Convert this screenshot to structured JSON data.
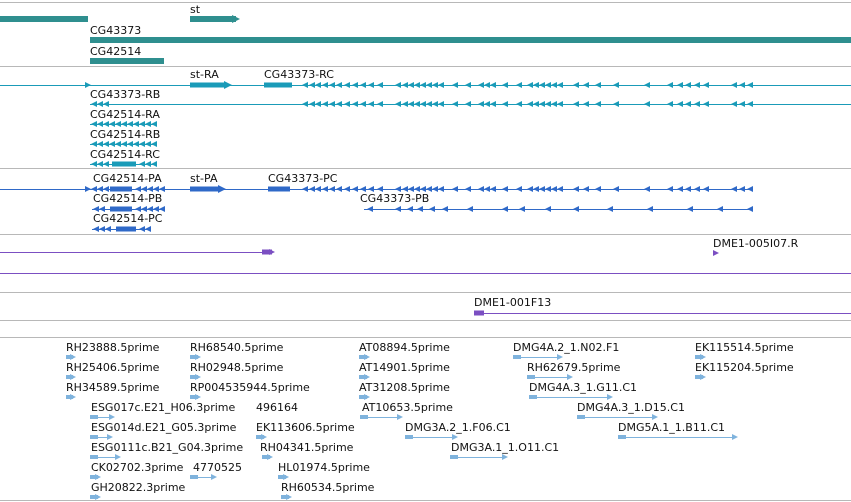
{
  "colors": {
    "gene": "#2f8f8f",
    "mrna": "#1a9bb8",
    "protein": "#2f69c8",
    "clone": "#7b4fc2",
    "est": "#7fb3dd",
    "separator": "#b8b8b8"
  },
  "genes": {
    "st": "st",
    "cg43373": "CG43373",
    "cg42514": "CG42514"
  },
  "mrnas": {
    "st_ra": "st-RA",
    "cg43373_rc": "CG43373-RC",
    "cg43373_rb": "CG43373-RB",
    "cg42514_ra": "CG42514-RA",
    "cg42514_rb": "CG42514-RB",
    "cg42514_rc": "CG42514-RC"
  },
  "proteins": {
    "cg42514_pa": "CG42514-PA",
    "st_pa": "st-PA",
    "cg43373_pc": "CG43373-PC",
    "cg42514_pb": "CG42514-PB",
    "cg43373_pb": "CG43373-PB",
    "cg42514_pc": "CG42514-PC"
  },
  "clones": {
    "dme1_005i07": "DME1-005I07.R",
    "dme1_001f13": "DME1-001F13"
  },
  "ests": {
    "rh23888": "RH23888.5prime",
    "rh25406": "RH25406.5prime",
    "rh34589": "RH34589.5prime",
    "esg017c": "ESG017c.E21_H06.3prime",
    "esg014d": "ESG014d.E21_G05.3prime",
    "esg0111c": "ESG0111c.B21_G04.3prime",
    "ck02702": "CK02702.3prime",
    "gh20822": "GH20822.3prime",
    "rh68540": "RH68540.5prime",
    "rh02948": "RH02948.5prime",
    "rp004535944": "RP004535944.5prime",
    "n496164": "496164",
    "ek113606": "EK113606.5prime",
    "rh04341": "RH04341.5prime",
    "n4770525": "4770525",
    "hl01974": "HL01974.5prime",
    "rh60534": "RH60534.5prime",
    "at08894": "AT08894.5prime",
    "at14901": "AT14901.5prime",
    "at31208": "AT31208.5prime",
    "at10653": "AT10653.5prime",
    "dmg3a2_f06": "DMG3A.2_1.F06.C1",
    "dmg3a1_o11": "DMG3A.1_1.O11.C1",
    "dmg4a2_n02": "DMG4A.2_1.N02.F1",
    "rh62679": "RH62679.5prime",
    "dmg4a3_g11": "DMG4A.3_1.G11.C1",
    "dmg4a3_d15": "DMG4A.3_1.D15.C1",
    "dmg5a1_b11": "DMG5A.1_1.B11.C1",
    "ek115514": "EK115514.5prime",
    "ek115204": "EK115204.5prime"
  }
}
